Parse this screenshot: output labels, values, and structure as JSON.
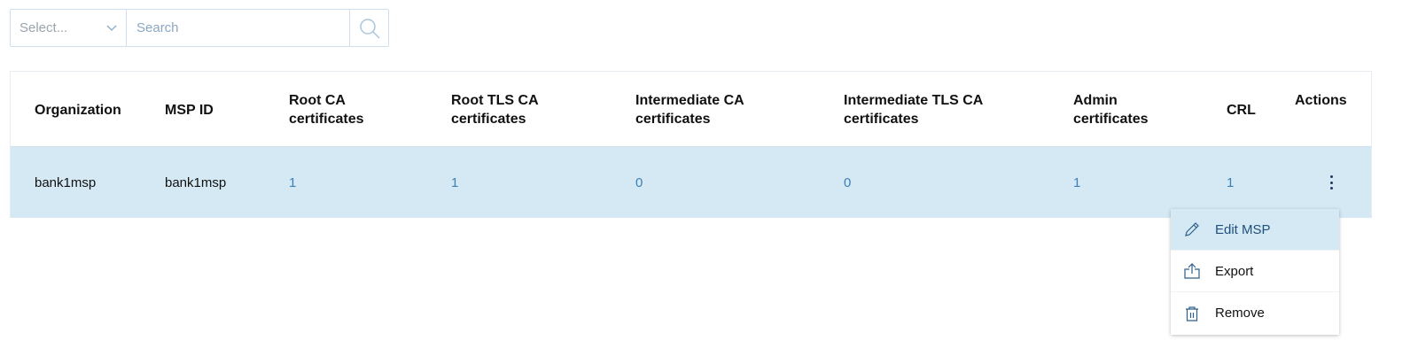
{
  "filter": {
    "select_placeholder": "Select...",
    "search_placeholder": "Search"
  },
  "table": {
    "headers": [
      "Organization",
      "MSP ID",
      "Root CA certificates",
      "Root TLS CA certificates",
      "Intermediate CA certificates",
      "Intermediate TLS CA certificates",
      "Admin certificates",
      "CRL",
      "Actions"
    ],
    "rows": [
      {
        "organization": "bank1msp",
        "msp_id": "bank1msp",
        "root_ca": "1",
        "root_tls_ca": "1",
        "intermediate_ca": "0",
        "intermediate_tls_ca": "0",
        "admin": "1",
        "crl": "1"
      }
    ]
  },
  "menu": {
    "items": [
      {
        "label": "Edit MSP",
        "icon": "pencil-icon"
      },
      {
        "label": "Export",
        "icon": "export-icon"
      },
      {
        "label": "Remove",
        "icon": "trash-icon"
      }
    ]
  },
  "colors": {
    "row_highlight": "#d4e9f3",
    "link": "#3d7fb6"
  }
}
